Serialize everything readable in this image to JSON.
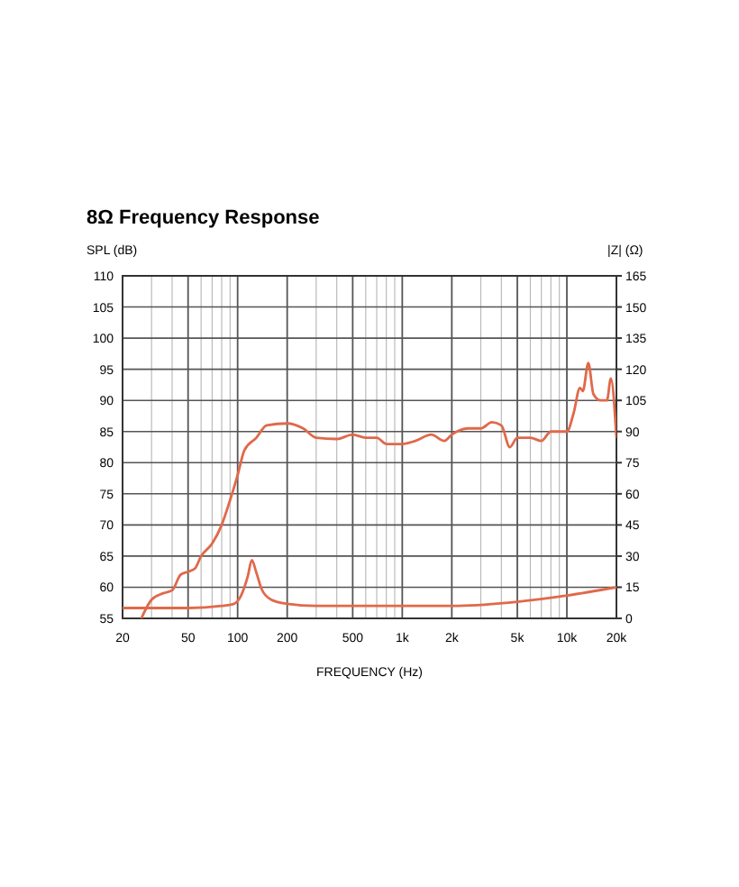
{
  "chart_data": {
    "type": "line",
    "title": "8Ω Frequency Response",
    "xlabel": "FREQUENCY (Hz)",
    "ylabel": "SPL (dB)",
    "y2label": "|Z| (Ω)",
    "log": "x",
    "grid": true,
    "marker": "none",
    "line_style": "solid",
    "xlim": [
      20,
      20000
    ],
    "xticks": [
      20,
      {
        "value": 30,
        "label": null
      },
      {
        "value": 40,
        "label": null
      },
      50,
      {
        "value": 60,
        "label": null
      },
      {
        "value": 70,
        "label": null
      },
      {
        "value": 80,
        "label": null
      },
      {
        "value": 90,
        "label": null
      },
      100,
      200,
      {
        "value": 300,
        "label": null
      },
      {
        "value": 400,
        "label": null
      },
      500,
      {
        "value": 600,
        "label": null
      },
      {
        "value": 700,
        "label": null
      },
      {
        "value": 800,
        "label": null
      },
      {
        "value": 900,
        "label": null
      },
      {
        "value": 1000,
        "label": "1k"
      },
      {
        "value": 2000,
        "label": "2k"
      },
      {
        "value": 3000,
        "label": null
      },
      {
        "value": 4000,
        "label": null
      },
      {
        "value": 5000,
        "label": "5k"
      },
      {
        "value": 6000,
        "label": null
      },
      {
        "value": 7000,
        "label": null
      },
      {
        "value": 8000,
        "label": null
      },
      {
        "value": 9000,
        "label": null
      },
      {
        "value": 10000,
        "label": "10k"
      },
      {
        "value": 20000,
        "label": "20k"
      }
    ],
    "ylim": [
      55,
      110
    ],
    "yticks": [
      55,
      60,
      65,
      70,
      75,
      80,
      85,
      90,
      95,
      100,
      105,
      110
    ],
    "y2lim": [
      0,
      165
    ],
    "y2ticks": [
      0,
      15,
      30,
      45,
      60,
      75,
      90,
      105,
      120,
      135,
      150,
      165
    ],
    "series": [
      {
        "color": "#e0694a",
        "x": [
          26,
          30,
          35,
          40,
          45,
          50,
          55,
          60,
          70,
          80,
          90,
          100,
          110,
          130,
          150,
          200,
          250,
          300,
          400,
          500,
          600,
          700,
          800,
          1000,
          1200,
          1500,
          1800,
          2000,
          2500,
          3000,
          3500,
          4000,
          4500,
          5000,
          6000,
          7000,
          8000,
          10000,
          11000,
          12000,
          12500,
          13500,
          14500,
          16000,
          17500,
          18500,
          20000
        ],
        "values": [
          55,
          58,
          59,
          59.5,
          62,
          62.5,
          63,
          65,
          67,
          70,
          74,
          78,
          82,
          84,
          86,
          86.3,
          85.5,
          84,
          83.8,
          84.5,
          84,
          84,
          83,
          83,
          83.5,
          84.5,
          83.5,
          84.5,
          85.5,
          85.5,
          86.5,
          86,
          82.5,
          84,
          84,
          83.5,
          85,
          85,
          88,
          92,
          91.5,
          96,
          91,
          90,
          90,
          93.5,
          84
        ]
      },
      {
        "color": "#e0694a",
        "axis": "y2",
        "x": [
          20,
          50,
          80,
          95,
          105,
          115,
          122,
          130,
          140,
          160,
          200,
          300,
          1000,
          2000,
          5000,
          10000,
          20000
        ],
        "values": [
          5,
          5,
          6,
          7,
          11,
          20,
          28,
          22,
          14,
          9,
          7,
          6,
          6,
          6,
          8,
          11,
          15
        ]
      }
    ]
  }
}
